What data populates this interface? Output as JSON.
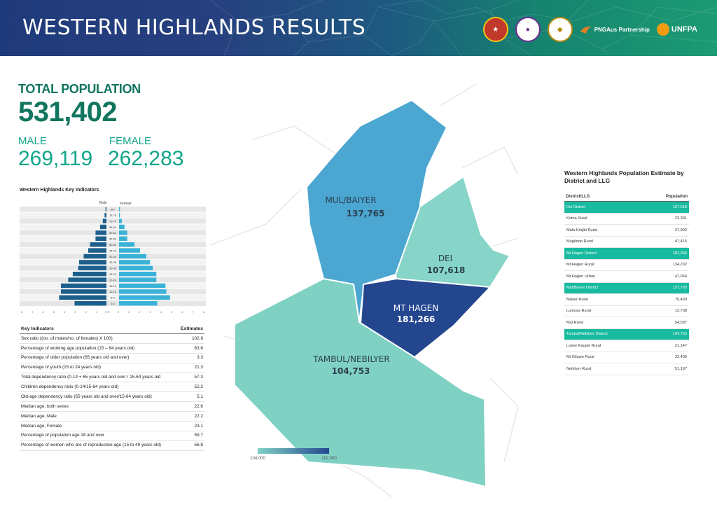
{
  "header": {
    "title": "WESTERN HIGHLANDS RESULTS",
    "partners": {
      "pngaus": "PNGAus Partnership",
      "unfpa": "UNFPA"
    }
  },
  "summary": {
    "total_label": "TOTAL POPULATION",
    "total_value": "531,402",
    "male_label": "MALE",
    "male_value": "269,119",
    "female_label": "FEMALE",
    "female_value": "262,283"
  },
  "pyramid": {
    "title": "Western Highlands Key Indicators",
    "male_label": "Male",
    "female_label": "Female",
    "age_groups": [
      "80+",
      "75-79",
      "70-74",
      "65-69",
      "60-64",
      "55-59",
      "50-54",
      "45-49",
      "40-44",
      "35-39",
      "30-34",
      "25-29",
      "20-24",
      "15-19",
      "10-14",
      "5-9",
      "0-4"
    ],
    "male_pct": [
      0.1,
      0.2,
      0.4,
      0.7,
      1.2,
      1.2,
      1.8,
      2.0,
      2.5,
      3.0,
      3.1,
      3.7,
      4.2,
      5.0,
      5.0,
      5.2,
      3.5
    ],
    "female_pct": [
      0.1,
      0.1,
      0.3,
      0.6,
      0.9,
      0.9,
      1.7,
      2.3,
      3.0,
      3.4,
      3.7,
      4.1,
      4.1,
      5.1,
      5.2,
      5.6,
      4.2
    ],
    "x_ticks": [
      "8",
      "7",
      "6",
      "5",
      "4",
      "3",
      "2",
      "1",
      "0 %",
      "0",
      "1",
      "2",
      "3",
      "4",
      "5",
      "6",
      "7",
      "8"
    ],
    "colors": {
      "male": "#1c5f8c",
      "female": "#3ab2d8",
      "band_a": "#e6e6e6",
      "band_b": "#f3f3f3"
    }
  },
  "key_indicators": {
    "header_label": "Key Indicators",
    "header_value": "Estimates",
    "rows": [
      {
        "label": "Sex ratio ((no. of males/no. of females) X 100)",
        "value": "102.6"
      },
      {
        "label": "Percentage of working age population (15 – 64 years old)",
        "value": "63.6"
      },
      {
        "label": "Percentage of older population (65 years old and over)",
        "value": "3.3"
      },
      {
        "label": "Percentage of youth (15 to 24 years old)",
        "value": "21.3"
      },
      {
        "label": "Total dependency ratio (0-14 + 65 years old and over / 15-64 years old",
        "value": "57.3"
      },
      {
        "label": "Children dependency ratio (0-14/15-64 years old)",
        "value": "52.2"
      },
      {
        "label": "Old-age dependency ratio (65 years old and over/15-64 years old)",
        "value": "5.1"
      },
      {
        "label": "Median age, both sexes",
        "value": "22.6"
      },
      {
        "label": "Median age, Male",
        "value": "22.2"
      },
      {
        "label": "Median age, Female",
        "value": "23.1"
      },
      {
        "label": "Percentage of population age 18 and over",
        "value": "59.7"
      },
      {
        "label": "Percentage of women who are of reproductive age (15 to 49 years old)",
        "value": "56.8"
      }
    ]
  },
  "map": {
    "districts": [
      {
        "name": "MUL/BAIYER",
        "population": "137,765",
        "color": "#4ba7d1"
      },
      {
        "name": "DEI",
        "population": "107,618",
        "color": "#86d5c8"
      },
      {
        "name": "MT HAGEN",
        "population": "181,266",
        "color": "#23468f"
      },
      {
        "name": "TAMBUL/NEBILYER",
        "population": "104,753",
        "color": "#7fd1c4"
      }
    ],
    "legend_min": "104,000",
    "legend_max": "182,000",
    "legend_colors": [
      "#7fd1c4",
      "#23468f"
    ]
  },
  "population_estimate": {
    "title": "Western Highlands Population Estimate by District and LLG",
    "col_name": "District/LLG",
    "col_pop": "Population",
    "rows": [
      {
        "name": "Dei District",
        "value": "107,618",
        "district": true
      },
      {
        "name": "Kotna Rural",
        "value": "22,301",
        "district": false
      },
      {
        "name": "Mala-Kinjibi Rural",
        "value": "37,902",
        "district": false
      },
      {
        "name": "Muglamp Rural",
        "value": "47,415",
        "district": false
      },
      {
        "name": "Mt Hagen District",
        "value": "181,266",
        "district": true
      },
      {
        "name": "Mt Hagen Rural",
        "value": "134,202",
        "district": false
      },
      {
        "name": "Mt Hagen Urban",
        "value": "47,064",
        "district": false
      },
      {
        "name": "Mul/Baiyer District",
        "value": "137,765",
        "district": true
      },
      {
        "name": "Baiyer Rural",
        "value": "70,430",
        "district": false
      },
      {
        "name": "Lumusa Rural",
        "value": "12,738",
        "district": false
      },
      {
        "name": "Mul Rural",
        "value": "54,597",
        "district": false
      },
      {
        "name": "Tambul/Nebilyer District",
        "value": "104,753",
        "district": true
      },
      {
        "name": "Lower Kaugel Rural",
        "value": "21,147",
        "district": false
      },
      {
        "name": "Mt Giluwe Rural",
        "value": "32,409",
        "district": false
      },
      {
        "name": "Nebilyer Rural",
        "value": "51,197",
        "district": false
      }
    ],
    "district_color": "#19bba0"
  }
}
